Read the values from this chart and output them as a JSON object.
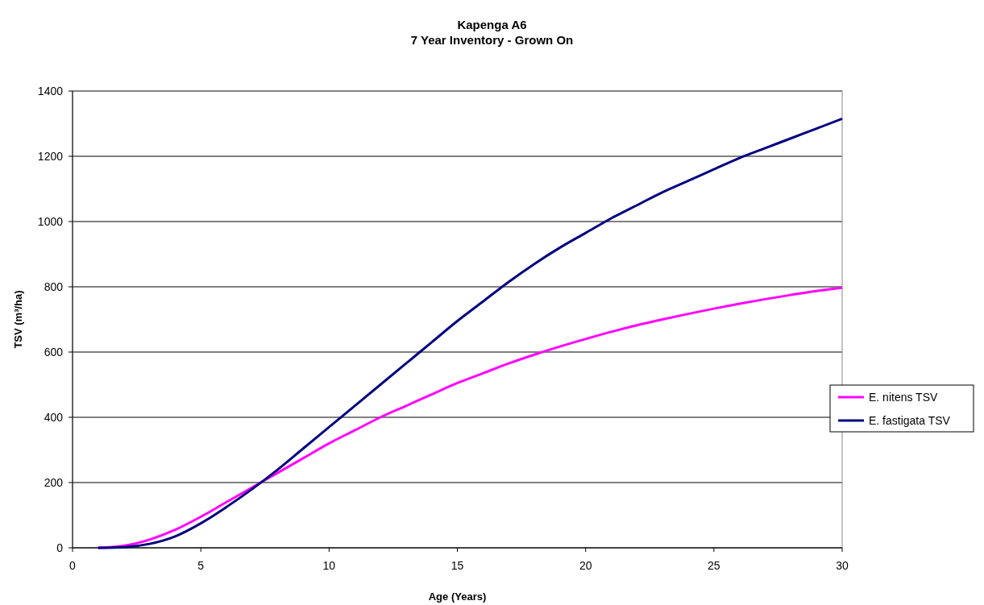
{
  "chart_data": {
    "type": "line",
    "title": "Kapenga A6",
    "subtitle": "7 Year Inventory - Grown On",
    "xlabel": "Age (Years)",
    "ylabel": "TSV (m³/ha)",
    "x": [
      1,
      2,
      3,
      4,
      5,
      6,
      7,
      8,
      9,
      10,
      11,
      12,
      13,
      14,
      15,
      16,
      17,
      18,
      19,
      20,
      21,
      22,
      23,
      24,
      25,
      26,
      27,
      28,
      29,
      30
    ],
    "xlim": [
      0,
      30
    ],
    "xticks": [
      0,
      5,
      10,
      15,
      20,
      25,
      30
    ],
    "ylim": [
      0,
      1400
    ],
    "yticks": [
      0,
      200,
      400,
      600,
      800,
      1000,
      1200,
      1400
    ],
    "grid": "y",
    "legend": "right",
    "marker": "none",
    "line_style": "solid",
    "series": [
      {
        "name": "E. nitens TSV",
        "color": "#ff00ff",
        "values": [
          0,
          6,
          25,
          55,
          95,
          140,
          185,
          230,
          275,
          320,
          360,
          400,
          435,
          470,
          505,
          535,
          565,
          592,
          617,
          640,
          662,
          682,
          700,
          717,
          733,
          748,
          762,
          775,
          787,
          797
        ]
      },
      {
        "name": "E. fastigata TSV",
        "color": "#000080",
        "values": [
          0,
          2,
          12,
          35,
          75,
          125,
          180,
          240,
          305,
          370,
          435,
          500,
          565,
          630,
          695,
          755,
          815,
          870,
          920,
          965,
          1010,
          1050,
          1090,
          1125,
          1160,
          1195,
          1225,
          1255,
          1285,
          1315
        ]
      }
    ]
  }
}
